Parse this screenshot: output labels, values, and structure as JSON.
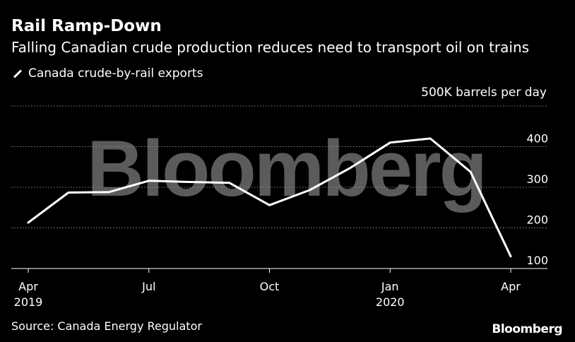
{
  "header": {
    "title": "Rail Ramp-Down",
    "subtitle": "Falling Canadian crude production reduces need to transport oil on trains"
  },
  "legend": {
    "label": "Canada crude-by-rail exports"
  },
  "footer": {
    "source": "Source: Canada Energy Regulator",
    "brand": "Bloomberg"
  },
  "watermark": "Bloomberg",
  "chart_data": {
    "type": "line",
    "title": "Rail Ramp-Down",
    "subtitle": "Falling Canadian crude production reduces need to transport oil on trains",
    "unit_label": "500K barrels per day",
    "x": [
      "2019-04",
      "2019-05",
      "2019-06",
      "2019-07",
      "2019-08",
      "2019-09",
      "2019-10",
      "2019-11",
      "2019-12",
      "2020-01",
      "2020-02",
      "2020-03",
      "2020-04"
    ],
    "series": [
      {
        "name": "Canada crude-by-rail exports",
        "values": [
          213,
          287,
          288,
          316,
          313,
          311,
          256,
          293,
          347,
          410,
          420,
          338,
          130
        ]
      }
    ],
    "ylim": [
      100,
      500
    ],
    "yticks": [
      100,
      200,
      300,
      400
    ],
    "x_ticks": [
      {
        "index": 0,
        "label": "Apr",
        "year": "2019"
      },
      {
        "index": 3,
        "label": "Jul",
        "year": ""
      },
      {
        "index": 6,
        "label": "Oct",
        "year": ""
      },
      {
        "index": 9,
        "label": "Jan",
        "year": "2020"
      },
      {
        "index": 12,
        "label": "Apr",
        "year": ""
      }
    ],
    "colors": {
      "line": "#ffffff",
      "grid": "#8a8a8a",
      "background": "#000000"
    },
    "grid": true
  }
}
